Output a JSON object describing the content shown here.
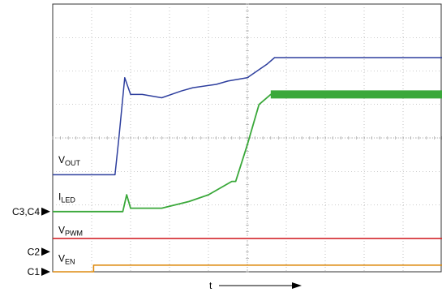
{
  "chart_data": {
    "type": "line",
    "xlabel": "t",
    "grid": true,
    "grid_divisions": {
      "x": 10,
      "y": 8
    },
    "channel_markers": [
      {
        "name": "C3,C4",
        "level_div": 1.8
      },
      {
        "name": "C2",
        "level_div": 0.6
      },
      {
        "name": "C1",
        "level_div": 0.0
      }
    ],
    "series": [
      {
        "name": "VOUT",
        "label_main": "V",
        "label_sub": "OUT",
        "color": "#2e3f9e",
        "x": [
          0.0,
          1.6,
          1.7,
          1.85,
          2.0,
          2.3,
          2.8,
          3.3,
          3.6,
          4.2,
          4.5,
          5.0,
          5.5,
          5.7,
          10.0
        ],
        "values": [
          2.9,
          2.9,
          4.0,
          5.8,
          5.3,
          5.3,
          5.2,
          5.4,
          5.5,
          5.6,
          5.7,
          5.8,
          6.2,
          6.4,
          6.4
        ]
      },
      {
        "name": "ILED",
        "label_main": "I",
        "label_sub": "LED",
        "color": "#3aa83a",
        "x": [
          0.0,
          1.6,
          1.8,
          1.9,
          2.0,
          2.8,
          3.5,
          4.0,
          4.3,
          4.6,
          4.7,
          5.0,
          5.3,
          5.6,
          10.0
        ],
        "values": [
          1.8,
          1.8,
          1.8,
          2.3,
          1.9,
          1.9,
          2.1,
          2.3,
          2.5,
          2.7,
          2.7,
          3.8,
          5.0,
          5.3,
          5.3
        ]
      },
      {
        "name": "VPWM",
        "label_main": "V",
        "label_sub": "PWM",
        "color": "#d4282d",
        "x": [
          0.0,
          10.0
        ],
        "values": [
          1.0,
          1.0
        ]
      },
      {
        "name": "VEN",
        "label_main": "V",
        "label_sub": "EN",
        "color": "#de8c12",
        "x": [
          0.0,
          1.05,
          1.05,
          10.0
        ],
        "values": [
          0.0,
          0.0,
          0.2,
          0.2
        ]
      }
    ],
    "label_levels": {
      "VOUT": 3.25,
      "ILED": 2.15,
      "VPWM": 1.15,
      "VEN": 0.3
    }
  }
}
